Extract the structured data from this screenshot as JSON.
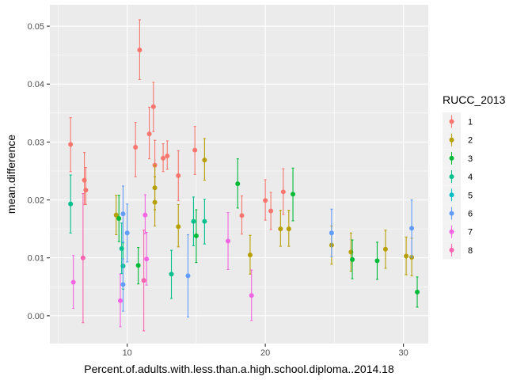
{
  "chart_data": {
    "type": "scatter",
    "title": "",
    "xlabel": "Percent.of.adults.with.less.than.a.high.school.diploma..2014.18",
    "ylabel": "mean.difference",
    "xlim": [
      4.4,
      31.8
    ],
    "ylim": [
      -0.0048,
      0.0537
    ],
    "x_ticks": [
      10,
      20,
      30
    ],
    "x_tick_labels": [
      "10",
      "20",
      "30"
    ],
    "y_ticks": [
      0.0,
      0.01,
      0.02,
      0.03,
      0.04,
      0.05
    ],
    "y_tick_labels": [
      "0.00",
      "0.01",
      "0.02",
      "0.03",
      "0.04",
      "0.05"
    ],
    "grid": true,
    "error_bars": true,
    "legend": {
      "title": "RUCC_2013",
      "placement": "right"
    },
    "series": [
      {
        "name": "1",
        "color": "#F8766D",
        "points": [
          {
            "x": 5.9,
            "y": 0.0296,
            "lo": 0.0249,
            "hi": 0.0342
          },
          {
            "x": 6.9,
            "y": 0.0234,
            "lo": 0.0192,
            "hi": 0.0282
          },
          {
            "x": 7.0,
            "y": 0.0217,
            "lo": 0.0192,
            "hi": 0.0256
          },
          {
            "x": 10.6,
            "y": 0.0291,
            "lo": 0.024,
            "hi": 0.0334
          },
          {
            "x": 10.9,
            "y": 0.0459,
            "lo": 0.0408,
            "hi": 0.0511
          },
          {
            "x": 11.6,
            "y": 0.0314,
            "lo": 0.0271,
            "hi": 0.036
          },
          {
            "x": 11.9,
            "y": 0.0361,
            "lo": 0.0318,
            "hi": 0.0403
          },
          {
            "x": 12.0,
            "y": 0.026,
            "lo": 0.0218,
            "hi": 0.0303
          },
          {
            "x": 12.6,
            "y": 0.0272,
            "lo": 0.0249,
            "hi": 0.0297
          },
          {
            "x": 12.9,
            "y": 0.0276,
            "lo": 0.0253,
            "hi": 0.0302
          },
          {
            "x": 13.7,
            "y": 0.0242,
            "lo": 0.0199,
            "hi": 0.0285
          },
          {
            "x": 14.9,
            "y": 0.0286,
            "lo": 0.0244,
            "hi": 0.0327
          },
          {
            "x": 18.3,
            "y": 0.0173,
            "lo": 0.0141,
            "hi": 0.0207
          },
          {
            "x": 20.0,
            "y": 0.0199,
            "lo": 0.0165,
            "hi": 0.0235
          },
          {
            "x": 20.4,
            "y": 0.0181,
            "lo": 0.0149,
            "hi": 0.0213
          },
          {
            "x": 21.3,
            "y": 0.0214,
            "lo": 0.0175,
            "hi": 0.0254
          }
        ]
      },
      {
        "name": "2",
        "color": "#B79F00",
        "points": [
          {
            "x": 9.2,
            "y": 0.0174,
            "lo": 0.014,
            "hi": 0.0208
          },
          {
            "x": 12.0,
            "y": 0.0221,
            "lo": 0.0183,
            "hi": 0.026
          },
          {
            "x": 12.0,
            "y": 0.0196,
            "lo": 0.0155,
            "hi": 0.024
          },
          {
            "x": 13.7,
            "y": 0.0154,
            "lo": 0.0119,
            "hi": 0.0192
          },
          {
            "x": 15.6,
            "y": 0.0269,
            "lo": 0.0234,
            "hi": 0.0306
          },
          {
            "x": 18.9,
            "y": 0.0105,
            "lo": 0.0072,
            "hi": 0.0139
          },
          {
            "x": 21.1,
            "y": 0.015,
            "lo": 0.012,
            "hi": 0.0182
          },
          {
            "x": 21.7,
            "y": 0.015,
            "lo": 0.012,
            "hi": 0.0182
          },
          {
            "x": 24.8,
            "y": 0.0122,
            "lo": 0.0089,
            "hi": 0.0155
          },
          {
            "x": 26.2,
            "y": 0.011,
            "lo": 0.0077,
            "hi": 0.0143
          },
          {
            "x": 28.7,
            "y": 0.0115,
            "lo": 0.0082,
            "hi": 0.0148
          },
          {
            "x": 30.2,
            "y": 0.0103,
            "lo": 0.0071,
            "hi": 0.0136
          },
          {
            "x": 30.6,
            "y": 0.0101,
            "lo": 0.0069,
            "hi": 0.0134
          }
        ]
      },
      {
        "name": "3",
        "color": "#00BA38",
        "points": [
          {
            "x": 9.4,
            "y": 0.0168,
            "lo": 0.0128,
            "hi": 0.0208
          },
          {
            "x": 10.8,
            "y": 0.0087,
            "lo": 0.0055,
            "hi": 0.0118
          },
          {
            "x": 15.0,
            "y": 0.0138,
            "lo": 0.0092,
            "hi": 0.0183
          },
          {
            "x": 18.0,
            "y": 0.0228,
            "lo": 0.0186,
            "hi": 0.0271
          },
          {
            "x": 22.0,
            "y": 0.021,
            "lo": 0.0164,
            "hi": 0.0255
          },
          {
            "x": 26.3,
            "y": 0.0097,
            "lo": 0.0064,
            "hi": 0.0131
          },
          {
            "x": 28.1,
            "y": 0.0095,
            "lo": 0.0063,
            "hi": 0.0127
          },
          {
            "x": 31.0,
            "y": 0.0041,
            "lo": 0.0015,
            "hi": 0.0067
          }
        ]
      },
      {
        "name": "4",
        "color": "#00C08B",
        "points": [
          {
            "x": 5.9,
            "y": 0.0193,
            "lo": 0.0143,
            "hi": 0.0243
          },
          {
            "x": 9.6,
            "y": 0.0116,
            "lo": 0.0073,
            "hi": 0.016
          },
          {
            "x": 9.7,
            "y": 0.0086,
            "lo": 0.0046,
            "hi": 0.0126
          },
          {
            "x": 13.2,
            "y": 0.0072,
            "lo": 0.003,
            "hi": 0.0113
          },
          {
            "x": 14.8,
            "y": 0.0163,
            "lo": 0.0121,
            "hi": 0.0205
          },
          {
            "x": 15.6,
            "y": 0.0163,
            "lo": 0.0124,
            "hi": 0.0201
          }
        ]
      },
      {
        "name": "5",
        "color": "#00BFC4",
        "points": []
      },
      {
        "name": "6",
        "color": "#619CFF",
        "points": [
          {
            "x": 9.7,
            "y": 0.0054,
            "lo": 0.0008,
            "hi": 0.0098
          },
          {
            "x": 9.7,
            "y": 0.0176,
            "lo": 0.0127,
            "hi": 0.0224
          },
          {
            "x": 10.0,
            "y": 0.0143,
            "lo": 0.0093,
            "hi": 0.0193
          },
          {
            "x": 14.4,
            "y": 0.0069,
            "lo": -0.0002,
            "hi": 0.014
          },
          {
            "x": 24.8,
            "y": 0.0143,
            "lo": 0.0102,
            "hi": 0.0184
          },
          {
            "x": 30.6,
            "y": 0.0151,
            "lo": 0.0101,
            "hi": 0.02
          }
        ]
      },
      {
        "name": "7",
        "color": "#F564E3",
        "points": [
          {
            "x": 6.1,
            "y": 0.0058,
            "lo": 0.0013,
            "hi": 0.0104
          },
          {
            "x": 9.5,
            "y": 0.0026,
            "lo": -0.0019,
            "hi": 0.0072
          },
          {
            "x": 11.3,
            "y": 0.0174,
            "lo": 0.0142,
            "hi": 0.0209
          },
          {
            "x": 11.4,
            "y": 0.0098,
            "lo": 0.0053,
            "hi": 0.0144
          },
          {
            "x": 17.3,
            "y": 0.0129,
            "lo": 0.008,
            "hi": 0.0178
          },
          {
            "x": 19.0,
            "y": 0.0035,
            "lo": -0.0008,
            "hi": 0.0079
          }
        ]
      },
      {
        "name": "8",
        "color": "#FF64B0",
        "points": [
          {
            "x": 6.8,
            "y": 0.01,
            "lo": -0.0012,
            "hi": 0.0211
          },
          {
            "x": 11.2,
            "y": 0.0061,
            "lo": -0.0026,
            "hi": 0.0148
          }
        ]
      }
    ]
  }
}
